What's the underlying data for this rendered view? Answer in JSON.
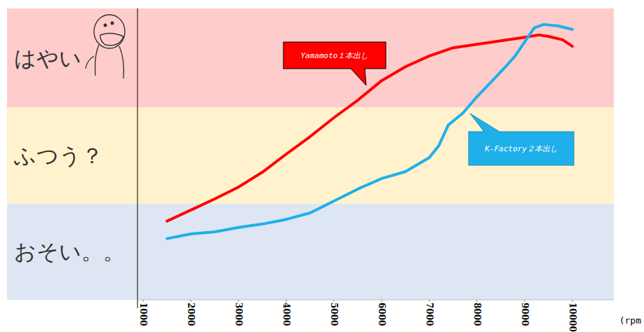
{
  "chart_data": {
    "type": "line",
    "x_label": "(rpm",
    "xlim": [
      880,
      10870
    ],
    "xticks": [
      1000,
      2000,
      3000,
      4000,
      5000,
      6000,
      7000,
      8000,
      9000,
      10000
    ],
    "ylim": [
      0,
      100
    ],
    "tick_labels": "x",
    "grid": false,
    "bands": [
      {
        "label": "はやい",
        "from": 66,
        "to": 100,
        "color": "#ffcccc"
      },
      {
        "label": "ふつう？",
        "from": 33,
        "to": 66,
        "color": "#fff2cc"
      },
      {
        "label": "おそい。。",
        "from": 0,
        "to": 33,
        "color": "#dee6f3"
      }
    ],
    "series": [
      {
        "name": "Yamamoto１本出し",
        "color": "#ff0000",
        "x": [
          1500,
          2000,
          2500,
          3000,
          3500,
          4000,
          4500,
          5000,
          5500,
          6000,
          6500,
          7000,
          7500,
          8000,
          8500,
          9000,
          9300,
          9500,
          9800,
          10000
        ],
        "values": [
          27,
          30.8,
          34.6,
          38.7,
          43.8,
          50,
          56,
          62.5,
          68.5,
          75.2,
          80,
          83.7,
          86.5,
          87.7,
          88.9,
          90.1,
          90.9,
          90.4,
          89.2,
          87
        ]
      },
      {
        "name": "K-Factory２本出し",
        "color": "#1fb0ea",
        "x": [
          1500,
          2000,
          2500,
          3000,
          3500,
          4000,
          4500,
          5000,
          5500,
          6000,
          6500,
          7000,
          7200,
          7400,
          7700,
          8000,
          8300,
          8600,
          8800,
          9000,
          9200,
          9400,
          9700,
          10000
        ],
        "values": [
          21,
          22.6,
          23.3,
          24.8,
          26,
          27.6,
          29.8,
          33.9,
          38,
          41.6,
          44,
          48.8,
          52.9,
          60,
          64,
          69.7,
          74.8,
          80,
          83.7,
          88.5,
          93.3,
          94.5,
          94,
          92.8
        ]
      }
    ]
  }
}
